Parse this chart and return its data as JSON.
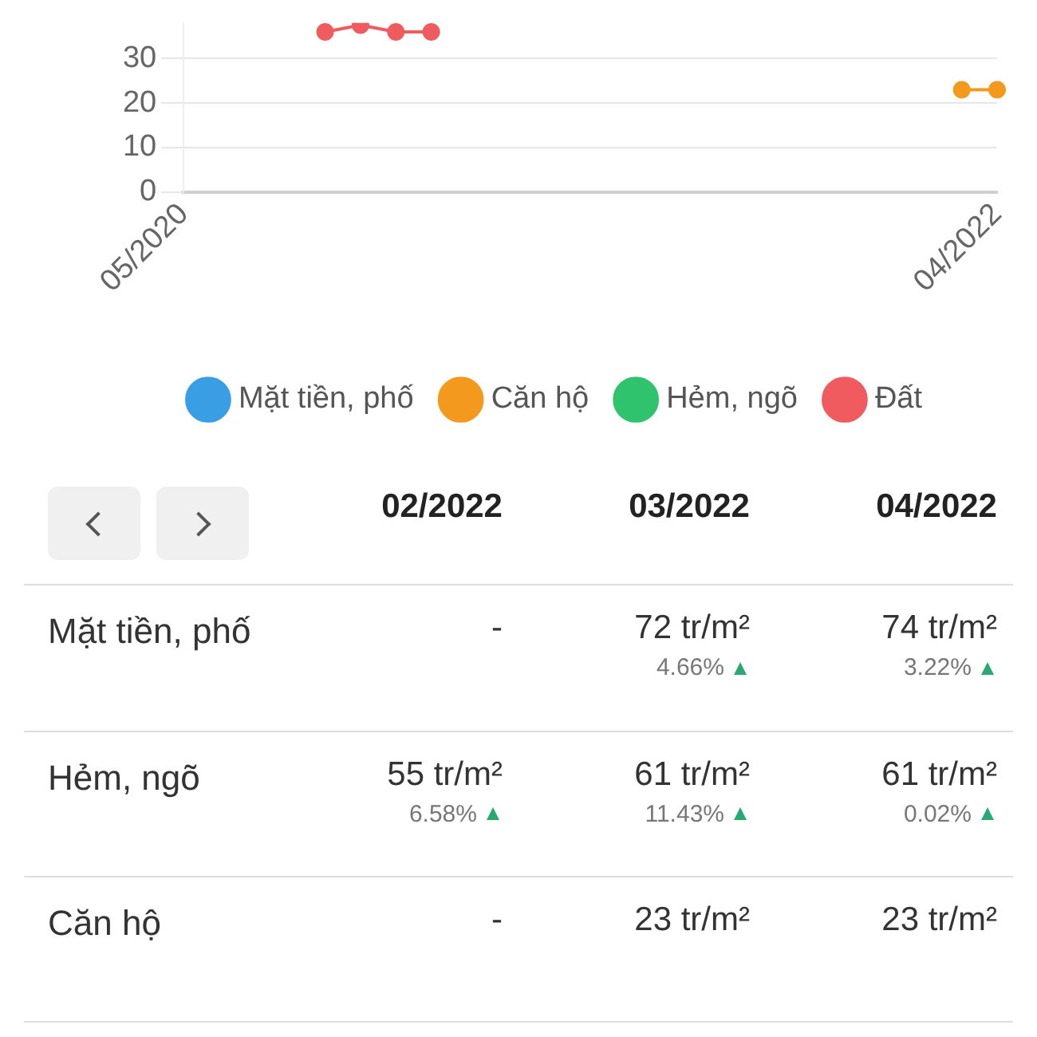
{
  "chart_data": [
    {
      "type": "line",
      "categories": [
        "05/2020",
        null,
        null,
        null,
        null,
        null,
        null,
        null,
        null,
        null,
        null,
        null,
        null,
        null,
        null,
        null,
        null,
        null,
        null,
        null,
        null,
        null,
        null,
        "04/2022"
      ],
      "series": [
        {
          "name": "Mặt tiền, phố",
          "color": "#3a9ee4",
          "values": [
            null,
            null,
            null,
            null,
            null,
            null,
            null,
            null,
            null,
            null,
            null,
            null,
            null,
            null,
            null,
            null,
            null,
            null,
            null,
            null,
            null,
            null,
            null,
            null
          ]
        },
        {
          "name": "Căn hộ",
          "color": "#f39a1e",
          "values": [
            null,
            null,
            null,
            null,
            null,
            null,
            null,
            null,
            null,
            null,
            null,
            null,
            null,
            null,
            null,
            null,
            null,
            null,
            null,
            null,
            null,
            null,
            23,
            23
          ]
        },
        {
          "name": "Hẻm, ngõ",
          "color": "#2fc36e",
          "values": [
            null,
            null,
            null,
            null,
            null,
            null,
            null,
            null,
            null,
            null,
            null,
            null,
            null,
            null,
            null,
            null,
            null,
            null,
            null,
            null,
            null,
            null,
            null,
            null
          ]
        },
        {
          "name": "Đất",
          "color": "#ef5b5f",
          "values": [
            null,
            null,
            null,
            null,
            36,
            37.5,
            36,
            36,
            null,
            null,
            null,
            null,
            null,
            null,
            null,
            null,
            null,
            null,
            null,
            null,
            null,
            null,
            null,
            null
          ]
        }
      ],
      "ylim": [
        0,
        38
      ],
      "yticks": [
        0,
        10,
        20,
        30
      ],
      "grid": "y",
      "legend": "bottom",
      "marker": "circle"
    },
    {
      "type": "other",
      "categories": [
        "02/2022",
        "03/2022",
        "04/2022"
      ],
      "y_categories": [
        "Mặt tiền, phố",
        "Hẻm, ngõ",
        "Căn hộ"
      ],
      "cell_labels": [
        [
          "-",
          "72 tr/m²\n4.66%",
          "74 tr/m²\n3.22%"
        ],
        [
          "55 tr/m²\n6.58%",
          "61 tr/m²\n11.43%",
          "61 tr/m²\n0.02%"
        ],
        [
          "-",
          "23 tr/m²",
          "23 tr/m²"
        ]
      ]
    }
  ]
}
